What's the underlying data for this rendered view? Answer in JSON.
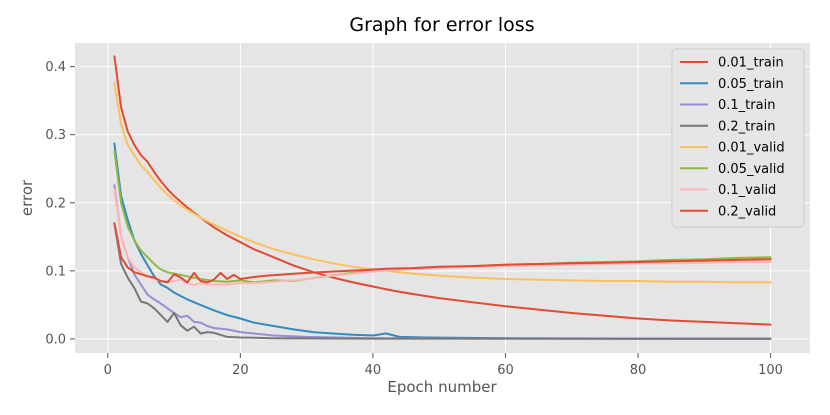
{
  "chart_data": {
    "type": "line",
    "title": "Graph for error loss",
    "xlabel": "Epoch number",
    "ylabel": "error",
    "xlim": [
      -4.95,
      105.95
    ],
    "ylim": [
      -0.0207,
      0.4347
    ],
    "xticks": [
      0,
      20,
      40,
      60,
      80,
      100
    ],
    "yticks": [
      0.0,
      0.1,
      0.2,
      0.3,
      0.4
    ],
    "ytick_labels": [
      "0.0",
      "0.1",
      "0.2",
      "0.3",
      "0.4"
    ],
    "grid": true,
    "legend_position": "top-right",
    "series": [
      {
        "name": "0.01_train",
        "color": "#E24A33",
        "points": [
          [
            1,
            0.415
          ],
          [
            2,
            0.34
          ],
          [
            3,
            0.305
          ],
          [
            4,
            0.285
          ],
          [
            5,
            0.27
          ],
          [
            6,
            0.26
          ],
          [
            7,
            0.245
          ],
          [
            8,
            0.232
          ],
          [
            9,
            0.22
          ],
          [
            10,
            0.21
          ],
          [
            12,
            0.193
          ],
          [
            14,
            0.178
          ],
          [
            16,
            0.164
          ],
          [
            18,
            0.152
          ],
          [
            20,
            0.142
          ],
          [
            22,
            0.132
          ],
          [
            25,
            0.12
          ],
          [
            28,
            0.108
          ],
          [
            31,
            0.098
          ],
          [
            34,
            0.09
          ],
          [
            37,
            0.083
          ],
          [
            40,
            0.077
          ],
          [
            43,
            0.071
          ],
          [
            46,
            0.066
          ],
          [
            50,
            0.06
          ],
          [
            55,
            0.054
          ],
          [
            60,
            0.048
          ],
          [
            65,
            0.043
          ],
          [
            70,
            0.038
          ],
          [
            75,
            0.034
          ],
          [
            80,
            0.03
          ],
          [
            85,
            0.027
          ],
          [
            90,
            0.025
          ],
          [
            95,
            0.023
          ],
          [
            100,
            0.021
          ]
        ]
      },
      {
        "name": "0.05_train",
        "color": "#348ABD",
        "points": [
          [
            1,
            0.287
          ],
          [
            2,
            0.21
          ],
          [
            3,
            0.175
          ],
          [
            4,
            0.145
          ],
          [
            5,
            0.125
          ],
          [
            6,
            0.108
          ],
          [
            7,
            0.092
          ],
          [
            8,
            0.08
          ],
          [
            9,
            0.075
          ],
          [
            10,
            0.068
          ],
          [
            12,
            0.058
          ],
          [
            14,
            0.05
          ],
          [
            16,
            0.042
          ],
          [
            18,
            0.035
          ],
          [
            20,
            0.03
          ],
          [
            22,
            0.024
          ],
          [
            25,
            0.019
          ],
          [
            28,
            0.014
          ],
          [
            31,
            0.01
          ],
          [
            34,
            0.008
          ],
          [
            37,
            0.006
          ],
          [
            40,
            0.005
          ],
          [
            42,
            0.008
          ],
          [
            44,
            0.003
          ],
          [
            48,
            0.002
          ],
          [
            60,
            0.001
          ],
          [
            80,
            0.0005
          ],
          [
            100,
            0.0003
          ]
        ]
      },
      {
        "name": "0.1_train",
        "color": "#988ED5",
        "points": [
          [
            1,
            0.226
          ],
          [
            2,
            0.15
          ],
          [
            3,
            0.12
          ],
          [
            4,
            0.095
          ],
          [
            5,
            0.08
          ],
          [
            6,
            0.065
          ],
          [
            7,
            0.058
          ],
          [
            8,
            0.052
          ],
          [
            9,
            0.045
          ],
          [
            10,
            0.038
          ],
          [
            11,
            0.032
          ],
          [
            12,
            0.034
          ],
          [
            13,
            0.025
          ],
          [
            14,
            0.024
          ],
          [
            15,
            0.019
          ],
          [
            16,
            0.016
          ],
          [
            18,
            0.014
          ],
          [
            20,
            0.01
          ],
          [
            22,
            0.008
          ],
          [
            25,
            0.005
          ],
          [
            30,
            0.003
          ],
          [
            40,
            0.001
          ],
          [
            60,
            0.0005
          ],
          [
            100,
            0.0002
          ]
        ]
      },
      {
        "name": "0.2_train",
        "color": "#777777",
        "points": [
          [
            1,
            0.17
          ],
          [
            2,
            0.11
          ],
          [
            3,
            0.09
          ],
          [
            4,
            0.075
          ],
          [
            5,
            0.055
          ],
          [
            6,
            0.052
          ],
          [
            7,
            0.045
          ],
          [
            8,
            0.035
          ],
          [
            9,
            0.025
          ],
          [
            10,
            0.038
          ],
          [
            11,
            0.02
          ],
          [
            12,
            0.012
          ],
          [
            13,
            0.018
          ],
          [
            14,
            0.008
          ],
          [
            15,
            0.01
          ],
          [
            16,
            0.009
          ],
          [
            17,
            0.006
          ],
          [
            18,
            0.003
          ],
          [
            20,
            0.002
          ],
          [
            25,
            0.001
          ],
          [
            40,
            0.0005
          ],
          [
            100,
            0.0002
          ]
        ]
      },
      {
        "name": "0.01_valid",
        "color": "#FBC15E",
        "points": [
          [
            1,
            0.376
          ],
          [
            2,
            0.315
          ],
          [
            3,
            0.285
          ],
          [
            4,
            0.27
          ],
          [
            5,
            0.255
          ],
          [
            6,
            0.245
          ],
          [
            7,
            0.233
          ],
          [
            8,
            0.222
          ],
          [
            9,
            0.212
          ],
          [
            10,
            0.203
          ],
          [
            12,
            0.19
          ],
          [
            14,
            0.178
          ],
          [
            16,
            0.168
          ],
          [
            18,
            0.159
          ],
          [
            20,
            0.15
          ],
          [
            22,
            0.142
          ],
          [
            25,
            0.132
          ],
          [
            28,
            0.124
          ],
          [
            31,
            0.117
          ],
          [
            34,
            0.111
          ],
          [
            37,
            0.106
          ],
          [
            40,
            0.102
          ],
          [
            43,
            0.099
          ],
          [
            46,
            0.096
          ],
          [
            50,
            0.093
          ],
          [
            55,
            0.09
          ],
          [
            60,
            0.088
          ],
          [
            65,
            0.087
          ],
          [
            70,
            0.086
          ],
          [
            75,
            0.085
          ],
          [
            80,
            0.085
          ],
          [
            85,
            0.084
          ],
          [
            90,
            0.084
          ],
          [
            95,
            0.083
          ],
          [
            100,
            0.083
          ]
        ]
      },
      {
        "name": "0.05_valid",
        "color": "#8EBA42",
        "points": [
          [
            1,
            0.276
          ],
          [
            2,
            0.2
          ],
          [
            3,
            0.165
          ],
          [
            4,
            0.145
          ],
          [
            5,
            0.13
          ],
          [
            6,
            0.12
          ],
          [
            7,
            0.11
          ],
          [
            8,
            0.102
          ],
          [
            9,
            0.098
          ],
          [
            10,
            0.096
          ],
          [
            12,
            0.092
          ],
          [
            14,
            0.088
          ],
          [
            16,
            0.085
          ],
          [
            18,
            0.084
          ],
          [
            20,
            0.086
          ],
          [
            22,
            0.083
          ],
          [
            25,
            0.086
          ],
          [
            28,
            0.085
          ],
          [
            30,
            0.088
          ],
          [
            33,
            0.092
          ],
          [
            36,
            0.096
          ],
          [
            40,
            0.1
          ],
          [
            45,
            0.103
          ],
          [
            50,
            0.105
          ],
          [
            55,
            0.107
          ],
          [
            60,
            0.109
          ],
          [
            65,
            0.11
          ],
          [
            70,
            0.112
          ],
          [
            75,
            0.113
          ],
          [
            80,
            0.114
          ],
          [
            85,
            0.116
          ],
          [
            90,
            0.117
          ],
          [
            95,
            0.119
          ],
          [
            100,
            0.12
          ]
        ]
      },
      {
        "name": "0.1_valid",
        "color": "#FFB5B8",
        "points": [
          [
            1,
            0.22
          ],
          [
            2,
            0.15
          ],
          [
            3,
            0.12
          ],
          [
            4,
            0.105
          ],
          [
            5,
            0.098
          ],
          [
            6,
            0.092
          ],
          [
            7,
            0.088
          ],
          [
            8,
            0.085
          ],
          [
            9,
            0.083
          ],
          [
            10,
            0.085
          ],
          [
            11,
            0.087
          ],
          [
            12,
            0.082
          ],
          [
            13,
            0.079
          ],
          [
            14,
            0.082
          ],
          [
            15,
            0.08
          ],
          [
            16,
            0.08
          ],
          [
            18,
            0.08
          ],
          [
            20,
            0.082
          ],
          [
            22,
            0.082
          ],
          [
            25,
            0.084
          ],
          [
            28,
            0.086
          ],
          [
            31,
            0.089
          ],
          [
            34,
            0.093
          ],
          [
            37,
            0.096
          ],
          [
            40,
            0.099
          ],
          [
            45,
            0.102
          ],
          [
            50,
            0.104
          ],
          [
            55,
            0.106
          ],
          [
            60,
            0.107
          ],
          [
            65,
            0.108
          ],
          [
            70,
            0.109
          ],
          [
            75,
            0.11
          ],
          [
            80,
            0.111
          ],
          [
            85,
            0.111
          ],
          [
            90,
            0.112
          ],
          [
            95,
            0.113
          ],
          [
            100,
            0.113
          ]
        ]
      },
      {
        "name": "0.2_valid",
        "color": "#E24A33",
        "points": [
          [
            1,
            0.17
          ],
          [
            2,
            0.12
          ],
          [
            3,
            0.105
          ],
          [
            4,
            0.098
          ],
          [
            5,
            0.095
          ],
          [
            6,
            0.092
          ],
          [
            7,
            0.09
          ],
          [
            8,
            0.085
          ],
          [
            9,
            0.083
          ],
          [
            10,
            0.095
          ],
          [
            11,
            0.09
          ],
          [
            12,
            0.083
          ],
          [
            13,
            0.097
          ],
          [
            14,
            0.085
          ],
          [
            15,
            0.083
          ],
          [
            16,
            0.087
          ],
          [
            17,
            0.097
          ],
          [
            18,
            0.088
          ],
          [
            19,
            0.094
          ],
          [
            20,
            0.088
          ],
          [
            22,
            0.091
          ],
          [
            24,
            0.093
          ],
          [
            27,
            0.095
          ],
          [
            30,
            0.097
          ],
          [
            34,
            0.099
          ],
          [
            38,
            0.101
          ],
          [
            42,
            0.103
          ],
          [
            46,
            0.104
          ],
          [
            50,
            0.106
          ],
          [
            55,
            0.107
          ],
          [
            60,
            0.109
          ],
          [
            65,
            0.11
          ],
          [
            70,
            0.111
          ],
          [
            75,
            0.112
          ],
          [
            80,
            0.113
          ],
          [
            85,
            0.114
          ],
          [
            90,
            0.115
          ],
          [
            95,
            0.116
          ],
          [
            100,
            0.117
          ]
        ]
      }
    ]
  }
}
